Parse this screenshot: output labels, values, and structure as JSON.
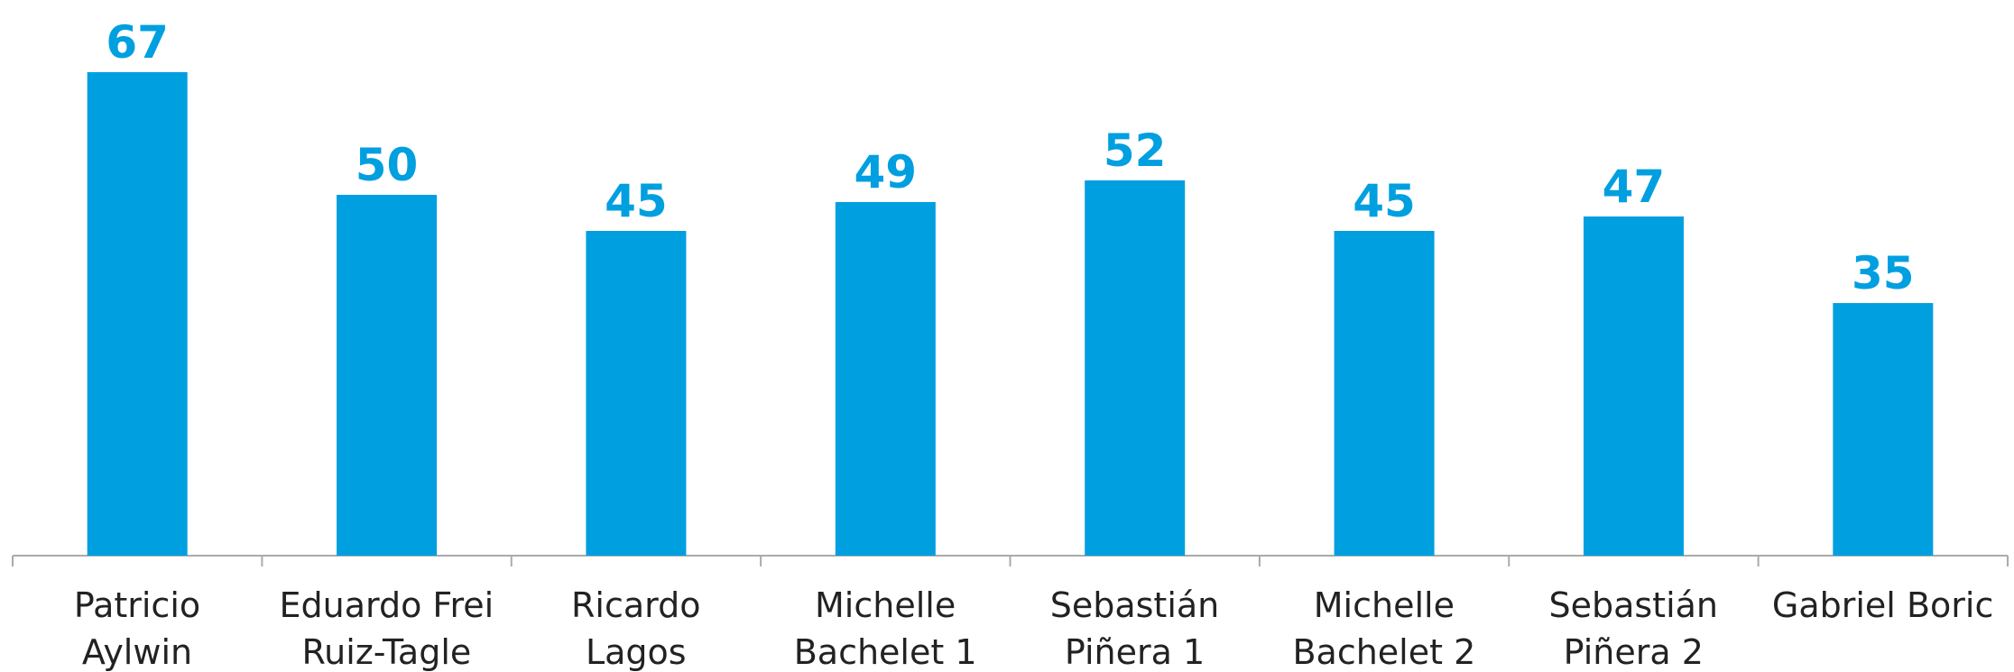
{
  "chart_data": {
    "type": "bar",
    "categories": [
      "Patricio\nAylwin",
      "Eduardo Frei\nRuiz-Tagle",
      "Ricardo\nLagos",
      "Michelle\nBachelet 1",
      "Sebastián\nPiñera 1",
      "Michelle\nBachelet 2",
      "Sebastián\nPiñera 2",
      "Gabriel Boric"
    ],
    "values": [
      67,
      50,
      45,
      49,
      52,
      45,
      47,
      35
    ],
    "color": "#009fe0",
    "ylim": [
      0,
      77
    ]
  }
}
